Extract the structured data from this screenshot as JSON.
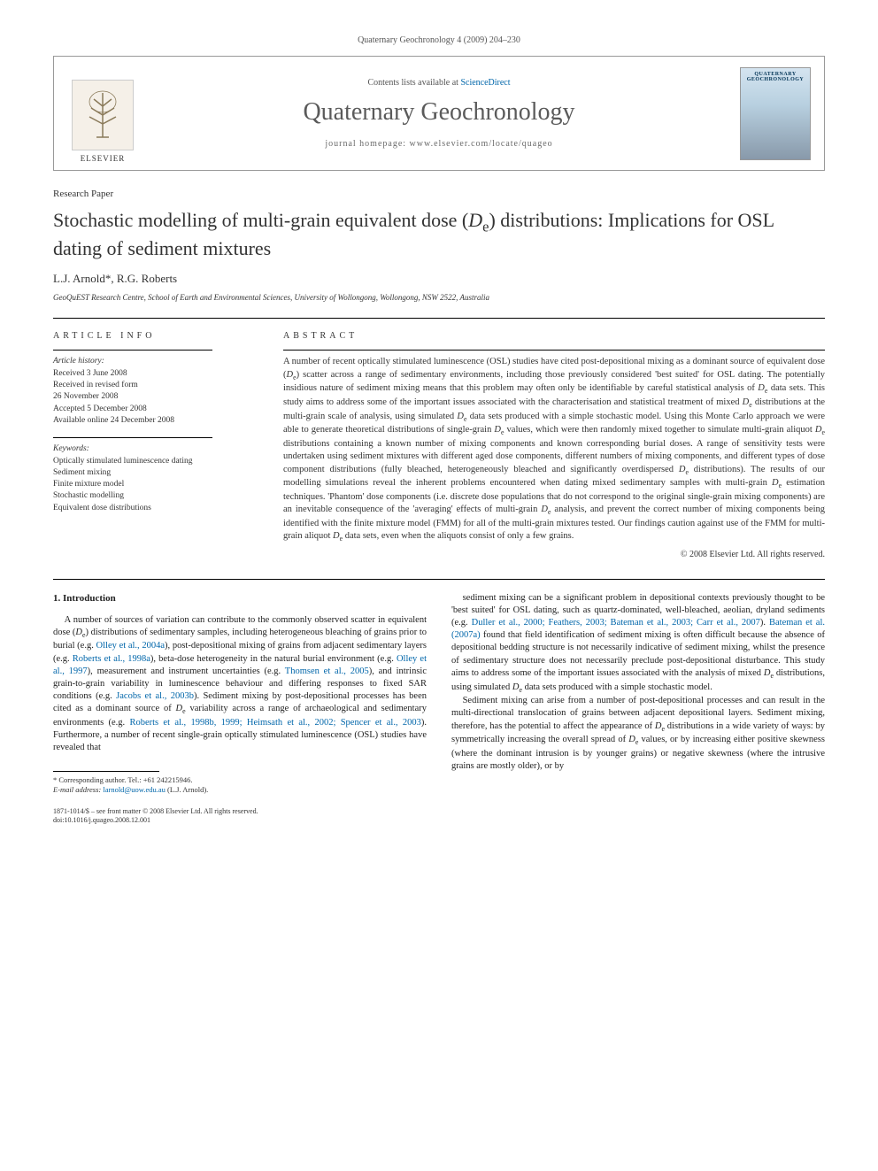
{
  "header": {
    "citation": "Quaternary Geochronology 4 (2009) 204–230"
  },
  "banner": {
    "elsevier_label": "ELSEVIER",
    "contents_prefix": "Contents lists available at ",
    "contents_link": "ScienceDirect",
    "journal_name": "Quaternary Geochronology",
    "homepage_prefix": "journal homepage: ",
    "homepage_url": "www.elsevier.com/locate/quageo",
    "cover_label": "QUATERNARY GEOCHRONOLOGY"
  },
  "article": {
    "type": "Research Paper",
    "title_html": "Stochastic modelling of multi-grain equivalent dose (<i>D</i><sub>e</sub>) distributions: Implications for OSL dating of sediment mixtures",
    "authors": "L.J. Arnold*, R.G. Roberts",
    "affiliation": "GeoQuEST Research Centre, School of Earth and Environmental Sciences, University of Wollongong, Wollongong, NSW 2522, Australia"
  },
  "info": {
    "label": "ARTICLE INFO",
    "history_label": "Article history:",
    "history": [
      "Received 3 June 2008",
      "Received in revised form",
      "26 November 2008",
      "Accepted 5 December 2008",
      "Available online 24 December 2008"
    ],
    "keywords_label": "Keywords:",
    "keywords": [
      "Optically stimulated luminescence dating",
      "Sediment mixing",
      "Finite mixture model",
      "Stochastic modelling",
      "Equivalent dose distributions"
    ]
  },
  "abstract": {
    "label": "ABSTRACT",
    "text_html": "A number of recent optically stimulated luminescence (OSL) studies have cited post-depositional mixing as a dominant source of equivalent dose (<i>D</i><sub>e</sub>) scatter across a range of sedimentary environments, including those previously considered 'best suited' for OSL dating. The potentially insidious nature of sediment mixing means that this problem may often only be identifiable by careful statistical analysis of <i>D</i><sub>e</sub> data sets. This study aims to address some of the important issues associated with the characterisation and statistical treatment of mixed <i>D</i><sub>e</sub> distributions at the multi-grain scale of analysis, using simulated <i>D</i><sub>e</sub> data sets produced with a simple stochastic model. Using this Monte Carlo approach we were able to generate theoretical distributions of single-grain <i>D</i><sub>e</sub> values, which were then randomly mixed together to simulate multi-grain aliquot <i>D</i><sub>e</sub> distributions containing a known number of mixing components and known corresponding burial doses. A range of sensitivity tests were undertaken using sediment mixtures with different aged dose components, different numbers of mixing components, and different types of dose component distributions (fully bleached, heterogeneously bleached and significantly overdispersed <i>D</i><sub>e</sub> distributions). The results of our modelling simulations reveal the inherent problems encountered when dating mixed sedimentary samples with multi-grain <i>D</i><sub>e</sub> estimation techniques. 'Phantom' dose components (i.e. discrete dose populations that do not correspond to the original single-grain mixing components) are an inevitable consequence of the 'averaging' effects of multi-grain <i>D</i><sub>e</sub> analysis, and prevent the correct number of mixing components being identified with the finite mixture model (FMM) for all of the multi-grain mixtures tested. Our findings caution against use of the FMM for multi-grain aliquot <i>D</i><sub>e</sub> data sets, even when the aliquots consist of only a few grains.",
    "copyright": "© 2008 Elsevier Ltd. All rights reserved."
  },
  "body": {
    "intro_heading": "1. Introduction",
    "col1_html": "A number of sources of variation can contribute to the commonly observed scatter in equivalent dose (<i>D</i><sub>e</sub>) distributions of sedimentary samples, including heterogeneous bleaching of grains prior to burial (e.g. <span class=\"cite\">Olley et al., 2004a</span>), post-depositional mixing of grains from adjacent sedimentary layers (e.g. <span class=\"cite\">Roberts et al., 1998a</span>), beta-dose heterogeneity in the natural burial environment (e.g. <span class=\"cite\">Olley et al., 1997</span>), measurement and instrument uncertainties (e.g. <span class=\"cite\">Thomsen et al., 2005</span>), and intrinsic grain-to-grain variability in luminescence behaviour and differing responses to fixed SAR conditions (e.g. <span class=\"cite\">Jacobs et al., 2003b</span>). Sediment mixing by post-depositional processes has been cited as a dominant source of <i>D</i><sub>e</sub> variability across a range of archaeological and sedimentary environments (e.g. <span class=\"cite\">Roberts et al., 1998b, 1999; Heimsath et al., 2002; Spencer et al., 2003</span>). Furthermore, a number of recent single-grain optically stimulated luminescence (OSL) studies have revealed that",
    "col2_html": "sediment mixing can be a significant problem in depositional contexts previously thought to be 'best suited' for OSL dating, such as quartz-dominated, well-bleached, aeolian, dryland sediments (e.g. <span class=\"cite\">Duller et al., 2000; Feathers, 2003; Bateman et al., 2003; Carr et al., 2007</span>). <span class=\"cite\">Bateman et al. (2007a)</span> found that field identification of sediment mixing is often difficult because the absence of depositional bedding structure is not necessarily indicative of sediment mixing, whilst the presence of sedimentary structure does not necessarily preclude post-depositional disturbance. This study aims to address some of the important issues associated with the analysis of mixed <i>D</i><sub>e</sub> distributions, using simulated <i>D</i><sub>e</sub> data sets produced with a simple stochastic model.",
    "col2_p2_html": "Sediment mixing can arise from a number of post-depositional processes and can result in the multi-directional translocation of grains between adjacent depositional layers. Sediment mixing, therefore, has the potential to affect the appearance of <i>D</i><sub>e</sub> distributions in a wide variety of ways: by symmetrically increasing the overall spread of <i>D</i><sub>e</sub> values, or by increasing either positive skewness (where the dominant intrusion is by younger grains) or negative skewness (where the intrusive grains are mostly older), or by"
  },
  "footnote": {
    "corresponding": "* Corresponding author. Tel.: +61 242215946.",
    "email_label": "E-mail address: ",
    "email": "larnold@uow.edu.au",
    "email_suffix": " (L.J. Arnold)."
  },
  "footer": {
    "line1": "1871-1014/$ – see front matter © 2008 Elsevier Ltd. All rights reserved.",
    "line2": "doi:10.1016/j.quageo.2008.12.001"
  },
  "colors": {
    "link": "#0066aa",
    "text": "#333333",
    "heading": "#5a5a5a"
  }
}
